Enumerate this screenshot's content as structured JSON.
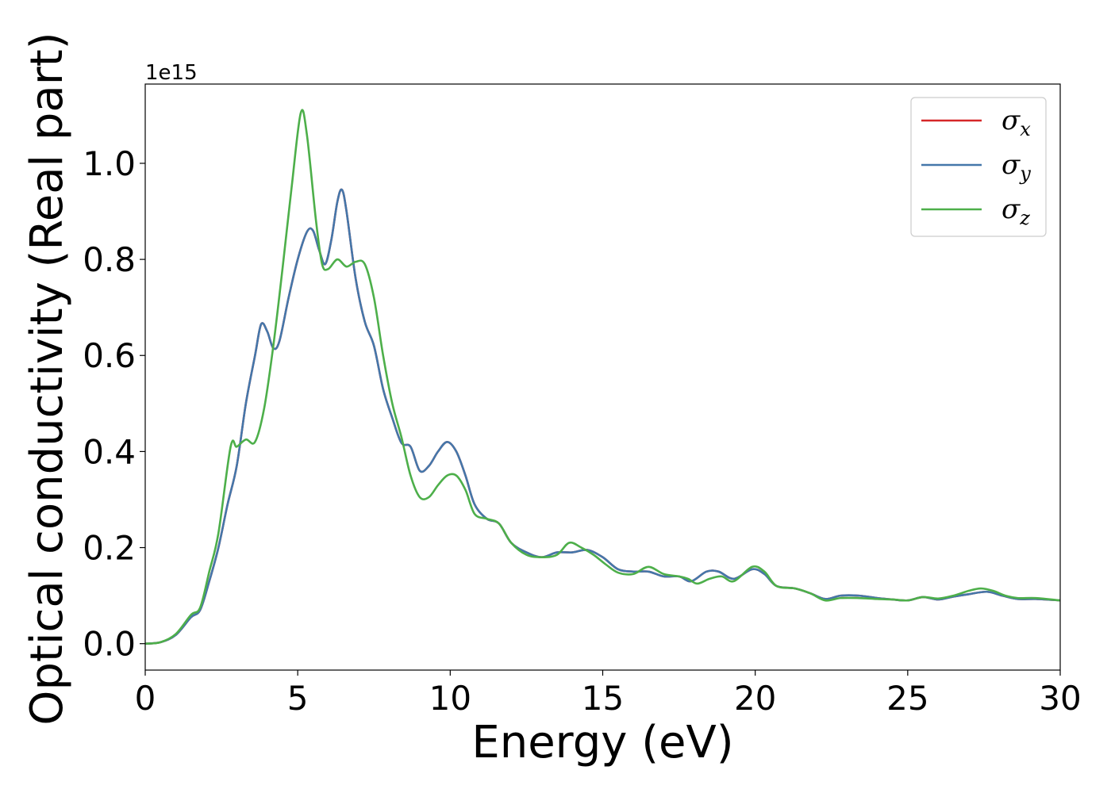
{
  "chart_data": {
    "type": "line",
    "xlabel": "Energy (eV)",
    "ylabel": "Optical conductivity (Real part)",
    "y_offset_text": "1e15",
    "xlim": [
      0,
      30
    ],
    "ylim": [
      -0.055,
      1.165
    ],
    "x_ticks": [
      0,
      5,
      10,
      15,
      20,
      25,
      30
    ],
    "x_tick_labels": [
      "0",
      "5",
      "10",
      "15",
      "20",
      "25",
      "30"
    ],
    "y_ticks": [
      0.0,
      0.2,
      0.4,
      0.6,
      0.8,
      1.0
    ],
    "y_tick_labels": [
      "0.0",
      "0.2",
      "0.4",
      "0.6",
      "0.8",
      "1.0"
    ],
    "grid": false,
    "legend_position": "top-right",
    "series": [
      {
        "name": "σx",
        "symbol": "σ",
        "subscript": "x",
        "color": "#d62728",
        "points": [
          [
            0,
            0
          ],
          [
            0.5,
            0.003
          ],
          [
            1.0,
            0.018
          ],
          [
            1.5,
            0.055
          ],
          [
            1.8,
            0.07
          ],
          [
            2.1,
            0.13
          ],
          [
            2.4,
            0.2
          ],
          [
            2.7,
            0.29
          ],
          [
            3.0,
            0.37
          ],
          [
            3.3,
            0.5
          ],
          [
            3.6,
            0.6
          ],
          [
            3.8,
            0.665
          ],
          [
            4.0,
            0.65
          ],
          [
            4.2,
            0.615
          ],
          [
            4.4,
            0.63
          ],
          [
            4.7,
            0.72
          ],
          [
            5.0,
            0.8
          ],
          [
            5.3,
            0.857
          ],
          [
            5.5,
            0.86
          ],
          [
            5.7,
            0.82
          ],
          [
            5.9,
            0.79
          ],
          [
            6.1,
            0.84
          ],
          [
            6.3,
            0.92
          ],
          [
            6.45,
            0.945
          ],
          [
            6.6,
            0.9
          ],
          [
            6.9,
            0.76
          ],
          [
            7.2,
            0.67
          ],
          [
            7.5,
            0.62
          ],
          [
            7.8,
            0.53
          ],
          [
            8.1,
            0.47
          ],
          [
            8.4,
            0.418
          ],
          [
            8.7,
            0.41
          ],
          [
            9.0,
            0.36
          ],
          [
            9.3,
            0.37
          ],
          [
            9.6,
            0.4
          ],
          [
            9.9,
            0.42
          ],
          [
            10.2,
            0.4
          ],
          [
            10.5,
            0.35
          ],
          [
            10.8,
            0.29
          ],
          [
            11.2,
            0.26
          ],
          [
            11.6,
            0.25
          ],
          [
            12.0,
            0.21
          ],
          [
            12.5,
            0.19
          ],
          [
            13.0,
            0.18
          ],
          [
            13.5,
            0.19
          ],
          [
            14.0,
            0.19
          ],
          [
            14.5,
            0.195
          ],
          [
            15.0,
            0.18
          ],
          [
            15.5,
            0.155
          ],
          [
            16.0,
            0.15
          ],
          [
            16.5,
            0.15
          ],
          [
            17.0,
            0.14
          ],
          [
            17.5,
            0.14
          ],
          [
            17.9,
            0.13
          ],
          [
            18.4,
            0.15
          ],
          [
            18.8,
            0.15
          ],
          [
            19.3,
            0.135
          ],
          [
            19.9,
            0.155
          ],
          [
            20.3,
            0.145
          ],
          [
            20.7,
            0.12
          ],
          [
            21.3,
            0.115
          ],
          [
            21.8,
            0.105
          ],
          [
            22.3,
            0.093
          ],
          [
            22.8,
            0.1
          ],
          [
            23.4,
            0.1
          ],
          [
            24.0,
            0.095
          ],
          [
            24.5,
            0.092
          ],
          [
            25.0,
            0.09
          ],
          [
            25.5,
            0.097
          ],
          [
            26.0,
            0.092
          ],
          [
            26.5,
            0.098
          ],
          [
            27.0,
            0.103
          ],
          [
            27.6,
            0.108
          ],
          [
            28.1,
            0.1
          ],
          [
            28.6,
            0.093
          ],
          [
            29.2,
            0.093
          ],
          [
            30.0,
            0.09
          ]
        ]
      },
      {
        "name": "σy",
        "symbol": "σ",
        "subscript": "y",
        "color": "#4477aa",
        "points": [
          [
            0,
            0
          ],
          [
            0.5,
            0.003
          ],
          [
            1.0,
            0.018
          ],
          [
            1.5,
            0.055
          ],
          [
            1.8,
            0.07
          ],
          [
            2.1,
            0.13
          ],
          [
            2.4,
            0.2
          ],
          [
            2.7,
            0.29
          ],
          [
            3.0,
            0.37
          ],
          [
            3.3,
            0.5
          ],
          [
            3.6,
            0.6
          ],
          [
            3.8,
            0.665
          ],
          [
            4.0,
            0.65
          ],
          [
            4.2,
            0.615
          ],
          [
            4.4,
            0.63
          ],
          [
            4.7,
            0.72
          ],
          [
            5.0,
            0.8
          ],
          [
            5.3,
            0.857
          ],
          [
            5.5,
            0.86
          ],
          [
            5.7,
            0.82
          ],
          [
            5.9,
            0.79
          ],
          [
            6.1,
            0.84
          ],
          [
            6.3,
            0.92
          ],
          [
            6.45,
            0.945
          ],
          [
            6.6,
            0.9
          ],
          [
            6.9,
            0.76
          ],
          [
            7.2,
            0.67
          ],
          [
            7.5,
            0.62
          ],
          [
            7.8,
            0.53
          ],
          [
            8.1,
            0.47
          ],
          [
            8.4,
            0.418
          ],
          [
            8.7,
            0.41
          ],
          [
            9.0,
            0.36
          ],
          [
            9.3,
            0.37
          ],
          [
            9.6,
            0.4
          ],
          [
            9.9,
            0.42
          ],
          [
            10.2,
            0.4
          ],
          [
            10.5,
            0.35
          ],
          [
            10.8,
            0.29
          ],
          [
            11.2,
            0.26
          ],
          [
            11.6,
            0.25
          ],
          [
            12.0,
            0.21
          ],
          [
            12.5,
            0.19
          ],
          [
            13.0,
            0.18
          ],
          [
            13.5,
            0.19
          ],
          [
            14.0,
            0.19
          ],
          [
            14.5,
            0.195
          ],
          [
            15.0,
            0.18
          ],
          [
            15.5,
            0.155
          ],
          [
            16.0,
            0.15
          ],
          [
            16.5,
            0.15
          ],
          [
            17.0,
            0.14
          ],
          [
            17.5,
            0.14
          ],
          [
            17.9,
            0.13
          ],
          [
            18.4,
            0.15
          ],
          [
            18.8,
            0.15
          ],
          [
            19.3,
            0.135
          ],
          [
            19.9,
            0.155
          ],
          [
            20.3,
            0.145
          ],
          [
            20.7,
            0.12
          ],
          [
            21.3,
            0.115
          ],
          [
            21.8,
            0.105
          ],
          [
            22.3,
            0.093
          ],
          [
            22.8,
            0.1
          ],
          [
            23.4,
            0.1
          ],
          [
            24.0,
            0.095
          ],
          [
            24.5,
            0.092
          ],
          [
            25.0,
            0.09
          ],
          [
            25.5,
            0.097
          ],
          [
            26.0,
            0.092
          ],
          [
            26.5,
            0.098
          ],
          [
            27.0,
            0.103
          ],
          [
            27.6,
            0.108
          ],
          [
            28.1,
            0.1
          ],
          [
            28.6,
            0.093
          ],
          [
            29.2,
            0.093
          ],
          [
            30.0,
            0.09
          ]
        ]
      },
      {
        "name": "σz",
        "symbol": "σ",
        "subscript": "z",
        "color": "#4daf4a",
        "points": [
          [
            0,
            0
          ],
          [
            0.5,
            0.003
          ],
          [
            1.0,
            0.02
          ],
          [
            1.5,
            0.06
          ],
          [
            1.8,
            0.075
          ],
          [
            2.1,
            0.15
          ],
          [
            2.4,
            0.23
          ],
          [
            2.8,
            0.41
          ],
          [
            3.0,
            0.41
          ],
          [
            3.3,
            0.425
          ],
          [
            3.6,
            0.42
          ],
          [
            3.9,
            0.49
          ],
          [
            4.2,
            0.62
          ],
          [
            4.5,
            0.78
          ],
          [
            4.8,
            0.95
          ],
          [
            5.1,
            1.105
          ],
          [
            5.3,
            1.06
          ],
          [
            5.6,
            0.88
          ],
          [
            5.8,
            0.79
          ],
          [
            6.0,
            0.78
          ],
          [
            6.3,
            0.8
          ],
          [
            6.6,
            0.785
          ],
          [
            6.9,
            0.795
          ],
          [
            7.2,
            0.79
          ],
          [
            7.5,
            0.72
          ],
          [
            7.8,
            0.6
          ],
          [
            8.1,
            0.5
          ],
          [
            8.4,
            0.43
          ],
          [
            8.7,
            0.35
          ],
          [
            9.0,
            0.305
          ],
          [
            9.3,
            0.305
          ],
          [
            9.6,
            0.33
          ],
          [
            9.9,
            0.35
          ],
          [
            10.2,
            0.35
          ],
          [
            10.5,
            0.32
          ],
          [
            10.8,
            0.27
          ],
          [
            11.2,
            0.26
          ],
          [
            11.6,
            0.25
          ],
          [
            12.0,
            0.21
          ],
          [
            12.5,
            0.185
          ],
          [
            13.0,
            0.18
          ],
          [
            13.5,
            0.185
          ],
          [
            13.9,
            0.21
          ],
          [
            14.3,
            0.2
          ],
          [
            14.7,
            0.185
          ],
          [
            15.1,
            0.165
          ],
          [
            15.5,
            0.148
          ],
          [
            16.0,
            0.145
          ],
          [
            16.5,
            0.16
          ],
          [
            17.0,
            0.145
          ],
          [
            17.5,
            0.14
          ],
          [
            17.8,
            0.135
          ],
          [
            18.1,
            0.125
          ],
          [
            18.5,
            0.135
          ],
          [
            18.9,
            0.14
          ],
          [
            19.3,
            0.13
          ],
          [
            19.9,
            0.16
          ],
          [
            20.3,
            0.15
          ],
          [
            20.7,
            0.12
          ],
          [
            21.3,
            0.115
          ],
          [
            21.8,
            0.105
          ],
          [
            22.3,
            0.09
          ],
          [
            22.8,
            0.095
          ],
          [
            23.4,
            0.095
          ],
          [
            24.0,
            0.093
          ],
          [
            24.5,
            0.092
          ],
          [
            25.0,
            0.09
          ],
          [
            25.5,
            0.097
          ],
          [
            26.0,
            0.094
          ],
          [
            26.5,
            0.1
          ],
          [
            27.0,
            0.11
          ],
          [
            27.4,
            0.115
          ],
          [
            27.8,
            0.11
          ],
          [
            28.2,
            0.1
          ],
          [
            28.6,
            0.095
          ],
          [
            29.2,
            0.095
          ],
          [
            30.0,
            0.09
          ]
        ]
      }
    ]
  }
}
